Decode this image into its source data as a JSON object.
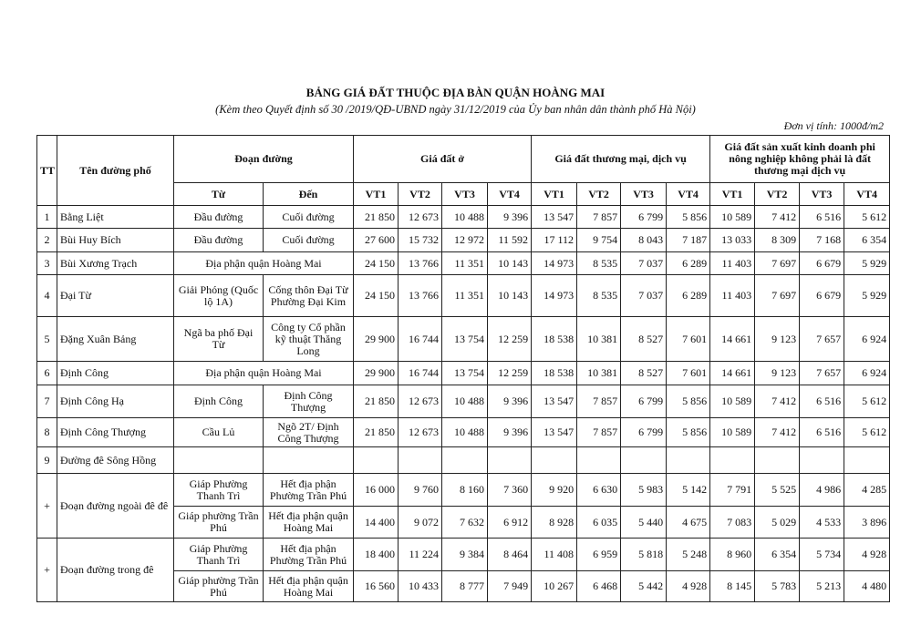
{
  "header": {
    "title": "BẢNG GIÁ ĐẤT THUỘC ĐỊA BÀN QUẬN HOÀNG MAI",
    "subtitle": "(Kèm theo Quyết định số 30 /2019/QĐ-UBND ngày 31/12/2019 của Ủy ban nhân dân thành phố Hà Nội)",
    "unit": "Đơn vị tính: 1000đ/m2"
  },
  "table": {
    "columns": {
      "tt": "TT",
      "name": "Tên đường phố",
      "segment": "Đoạn đường",
      "from": "Từ",
      "to": "Đến",
      "groups": [
        "Giá đất ở",
        "Giá đất thương mại, dịch vụ",
        "Giá đất sản xuất kinh doanh phi nông nghiệp không phải là đất thương mại dịch vụ"
      ],
      "positions": [
        "VT1",
        "VT2",
        "VT3",
        "VT4"
      ]
    },
    "rows": [
      {
        "tt": "1",
        "name": "Bằng Liệt",
        "from": "Đầu đường",
        "to": "Cuối đường",
        "prices": [
          "21 850",
          "12 673",
          "10 488",
          "9 396",
          "13 547",
          "7 857",
          "6 799",
          "5 856",
          "10 589",
          "7 412",
          "6 516",
          "5 612"
        ]
      },
      {
        "tt": "2",
        "name": "Bùi Huy Bích",
        "from": "Đầu đường",
        "to": "Cuối đường",
        "prices": [
          "27 600",
          "15 732",
          "12 972",
          "11 592",
          "17 112",
          "9 754",
          "8 043",
          "7 187",
          "13 033",
          "8 309",
          "7 168",
          "6 354"
        ]
      },
      {
        "tt": "3",
        "name": "Bùi Xương Trạch",
        "segment": "Địa phận quận Hoàng Mai",
        "prices": [
          "24 150",
          "13 766",
          "11 351",
          "10 143",
          "14 973",
          "8 535",
          "7 037",
          "6 289",
          "11 403",
          "7 697",
          "6 679",
          "5 929"
        ]
      },
      {
        "tt": "4",
        "name": "Đại Từ",
        "from": "Giải Phóng (Quốc lộ 1A)",
        "to": "Cống thôn Đại Từ Phường Đại Kim",
        "prices": [
          "24 150",
          "13 766",
          "11 351",
          "10 143",
          "14 973",
          "8 535",
          "7 037",
          "6 289",
          "11 403",
          "7 697",
          "6 679",
          "5 929"
        ]
      },
      {
        "tt": "5",
        "name": "Đặng Xuân Bảng",
        "from": "Ngã ba phố Đại Từ",
        "to": "Công ty Cổ phần kỹ thuật Thăng Long",
        "prices": [
          "29 900",
          "16 744",
          "13 754",
          "12 259",
          "18 538",
          "10 381",
          "8 527",
          "7 601",
          "14 661",
          "9 123",
          "7 657",
          "6 924"
        ]
      },
      {
        "tt": "6",
        "name": "Định Công",
        "segment": "Địa phận quận Hoàng Mai",
        "prices": [
          "29 900",
          "16 744",
          "13 754",
          "12 259",
          "18 538",
          "10 381",
          "8 527",
          "7 601",
          "14 661",
          "9 123",
          "7 657",
          "6 924"
        ]
      },
      {
        "tt": "7",
        "name": "Định Công Hạ",
        "from": "Định Công",
        "to": "Định Công Thượng",
        "prices": [
          "21 850",
          "12 673",
          "10 488",
          "9 396",
          "13 547",
          "7 857",
          "6 799",
          "5 856",
          "10 589",
          "7 412",
          "6 516",
          "5 612"
        ]
      },
      {
        "tt": "8",
        "name": "Định Công Thượng",
        "from": "Cầu Lủ",
        "to": "Ngõ 2T/ Định Công Thượng",
        "prices": [
          "21 850",
          "12 673",
          "10 488",
          "9 396",
          "13 547",
          "7 857",
          "6 799",
          "5 856",
          "10 589",
          "7 412",
          "6 516",
          "5 612"
        ]
      },
      {
        "tt": "9",
        "name": "Đường đê Sông Hồng"
      },
      {
        "tt": "+",
        "name": "Đoạn đường ngoài đê đê",
        "parts": [
          {
            "from": "Giáp Phường Thanh Trì",
            "to": "Hết địa phận Phường Trần Phú",
            "prices": [
              "16 000",
              "9 760",
              "8 160",
              "7 360",
              "9 920",
              "6 630",
              "5 983",
              "5 142",
              "7 791",
              "5 525",
              "4 986",
              "4 285"
            ]
          },
          {
            "from": "Giáp phường Trần Phú",
            "to": "Hết địa phận quận Hoàng Mai",
            "prices": [
              "14 400",
              "9 072",
              "7 632",
              "6 912",
              "8 928",
              "6 035",
              "5 440",
              "4 675",
              "7 083",
              "5 029",
              "4 533",
              "3 896"
            ]
          }
        ]
      },
      {
        "tt": "+",
        "name": "Đoạn đường trong đê",
        "parts": [
          {
            "from": "Giáp Phường Thanh Trì",
            "to": "Hết địa phận Phường Trần Phú",
            "prices": [
              "18 400",
              "11 224",
              "9 384",
              "8 464",
              "11 408",
              "6 959",
              "5 818",
              "5 248",
              "8 960",
              "6 354",
              "5 734",
              "4 928"
            ]
          },
          {
            "from": "Giáp phường Trần Phú",
            "to": "Hết địa phận quận Hoàng Mai",
            "prices": [
              "16 560",
              "10 433",
              "8 777",
              "7 949",
              "10 267",
              "6 468",
              "5 442",
              "4 928",
              "8 145",
              "5 783",
              "5 213",
              "4 480"
            ]
          }
        ]
      }
    ]
  }
}
